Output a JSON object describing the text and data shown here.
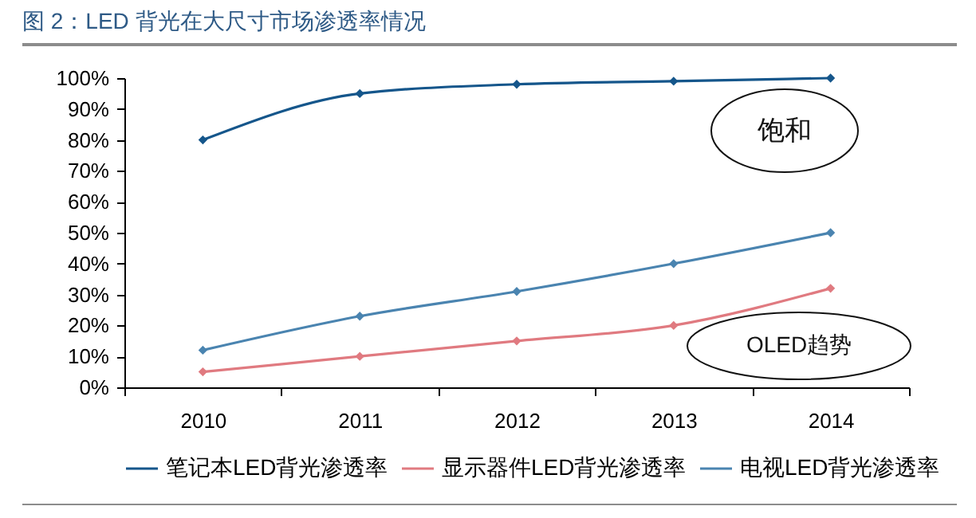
{
  "chart_data": {
    "type": "line",
    "title": "图 2：LED 背光在大尺寸市场渗透率情况",
    "categories": [
      "2010",
      "2011",
      "2012",
      "2013",
      "2014"
    ],
    "series": [
      {
        "name": "笔记本LED背光渗透率",
        "color": "#15568b",
        "values": [
          80,
          95,
          98,
          99,
          100
        ]
      },
      {
        "name": "显示器件LED背光渗透率",
        "color": "#e07a80",
        "values": [
          5,
          10,
          15,
          20,
          32
        ]
      },
      {
        "name": "电视LED背光渗透率",
        "color": "#4a84b0",
        "values": [
          12,
          23,
          31,
          40,
          50
        ]
      }
    ],
    "ylim": [
      0,
      100
    ],
    "yticks": [
      {
        "value": 0,
        "label": "0%"
      },
      {
        "value": 10,
        "label": "10%"
      },
      {
        "value": 20,
        "label": "20%"
      },
      {
        "value": 30,
        "label": "30%"
      },
      {
        "value": 40,
        "label": "40%"
      },
      {
        "value": 50,
        "label": "50%"
      },
      {
        "value": 60,
        "label": "60%"
      },
      {
        "value": 70,
        "label": "70%"
      },
      {
        "value": 80,
        "label": "80%"
      },
      {
        "value": 90,
        "label": "90%"
      },
      {
        "value": 100,
        "label": "100%"
      }
    ],
    "annotations": [
      "饱和",
      "OLED趋势"
    ],
    "legend": "bottom",
    "grid": false,
    "marker": "diamond",
    "line_style": "solid"
  }
}
